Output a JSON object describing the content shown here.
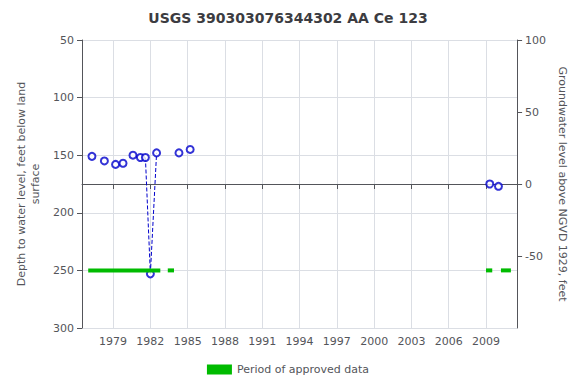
{
  "chart_data": {
    "type": "scatter",
    "title": "USGS 390303076344302 AA Ce 123",
    "ylabel": "Depth to water level, feet below land\nsurface",
    "y2label": "Groundwater level above NGVD 1929, feet",
    "xlim": [
      1976.5,
      2011.5
    ],
    "xticks": [
      1979,
      1982,
      1985,
      1988,
      1991,
      1994,
      1997,
      2000,
      2003,
      2006,
      2009
    ],
    "ylim": [
      300,
      50
    ],
    "yticks": [
      50,
      100,
      150,
      200,
      250,
      300
    ],
    "y2lim": [
      -100,
      100
    ],
    "y2ticks": [
      100,
      50,
      0,
      -50
    ],
    "grid": true,
    "legend": "bottom",
    "series": [
      {
        "type": "line",
        "line_style": "dashed",
        "color": "#0000cc",
        "x": [
          1981.6,
          1982.0
        ],
        "values": [
          152,
          253
        ]
      },
      {
        "type": "line",
        "line_style": "dashed",
        "color": "#0000cc",
        "x": [
          1982.0,
          1982.5
        ],
        "values": [
          253,
          148
        ]
      },
      {
        "type": "scatter",
        "marker": "open circle",
        "color": "#0000cc",
        "x": [
          1977.3,
          1978.3,
          1979.2,
          1979.8,
          1980.6,
          1981.2,
          1981.6,
          1982.0,
          1982.5,
          1984.3,
          1985.2,
          2009.3,
          2010.0
        ],
        "values": [
          151,
          155,
          158,
          157,
          150,
          152,
          152,
          253,
          148,
          148,
          145,
          175,
          177
        ]
      },
      {
        "type": "range",
        "name": "Period of approved data",
        "color": "#00bb00",
        "x_start": [
          1977.0,
          1983.4,
          2009.0,
          2010.2
        ],
        "x_end": [
          1982.8,
          1983.9,
          2009.5,
          2011.0
        ],
        "values": [
          250,
          250,
          250,
          250
        ]
      }
    ]
  }
}
